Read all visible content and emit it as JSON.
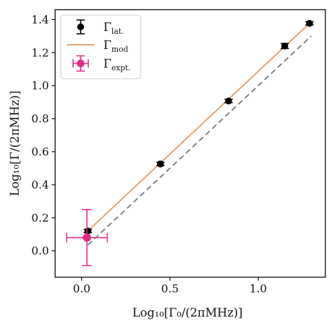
{
  "chart_data": {
    "type": "scatter",
    "xlabel": "Log₁₀[Γ₀/(2πMHz)]",
    "ylabel": "Log₁₀[Γ/(2πMHz)]",
    "xlim": [
      -0.15,
      1.38
    ],
    "ylim": [
      -0.16,
      1.46
    ],
    "x_ticks": [
      0.0,
      0.5,
      1.0
    ],
    "x_tick_labels": [
      "0.0",
      "0.5",
      "1.0"
    ],
    "y_ticks": [
      0.0,
      0.2,
      0.4,
      0.6,
      0.8,
      1.0,
      1.2,
      1.4
    ],
    "y_tick_labels": [
      "0.0",
      "0.2",
      "0.4",
      "0.6",
      "0.8",
      "1.0",
      "1.2",
      "1.4"
    ],
    "grid": false,
    "legend_position": "top-left",
    "series": [
      {
        "name": "Γlat.",
        "legend_main": "Γ",
        "legend_sub": "lat.",
        "kind": "errorbar",
        "color": "#000000",
        "points": [
          {
            "x": 0.035,
            "y": 0.12,
            "yerr": 0.01
          },
          {
            "x": 0.446,
            "y": 0.526,
            "yerr": 0.01
          },
          {
            "x": 0.832,
            "y": 0.907,
            "yerr": 0.01
          },
          {
            "x": 1.15,
            "y": 1.24,
            "yerr": 0.015
          },
          {
            "x": 1.29,
            "y": 1.377,
            "yerr": 0.01
          }
        ]
      },
      {
        "name": "Γmod",
        "legend_main": "Γ",
        "legend_sub": "mod",
        "kind": "line",
        "color": "#e8a06b",
        "x": [
          0.035,
          1.29
        ],
        "y": [
          0.12,
          1.377
        ]
      },
      {
        "name": "Γexpt.",
        "legend_main": "Γ",
        "legend_sub": "expt.",
        "kind": "errorbar",
        "color": "#e6298a",
        "points": [
          {
            "x": 0.03,
            "y": 0.08,
            "xerr": 0.115,
            "yerr": 0.17
          }
        ]
      },
      {
        "name": "",
        "kind": "dashed-line",
        "color": "#808080",
        "x": [
          0.035,
          1.3
        ],
        "y": [
          0.035,
          1.3
        ]
      }
    ]
  }
}
